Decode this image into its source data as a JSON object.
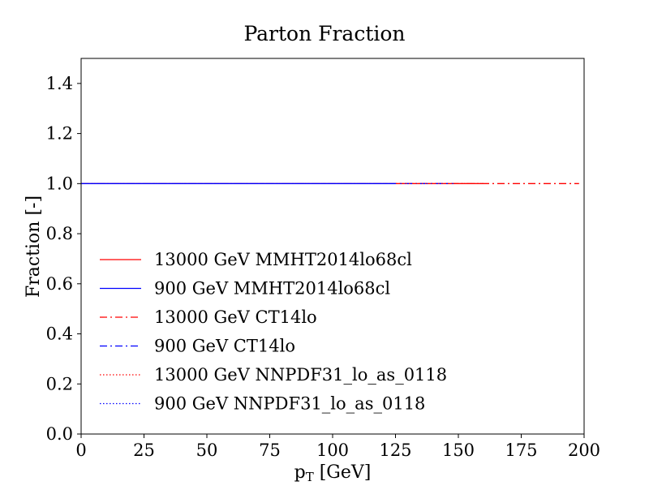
{
  "chart_data": {
    "type": "line",
    "title": "Parton Fraction",
    "xlabel": "p_T [GeV]",
    "ylabel": "Fraction [-]",
    "xlim": [
      0,
      200
    ],
    "ylim": [
      0.0,
      1.5
    ],
    "xticks": [
      "0",
      "25",
      "50",
      "75",
      "100",
      "125",
      "150",
      "175",
      "200"
    ],
    "yticks": [
      "0.0",
      "0.2",
      "0.4",
      "0.6",
      "0.8",
      "1.0",
      "1.2",
      "1.4"
    ],
    "grid": false,
    "legend_position": "lower-left",
    "series": [
      {
        "name": "13000 GeV MMHT2014lo68cl",
        "color": "#ff0000",
        "linestyle": "solid",
        "x": [
          0,
          160
        ],
        "y": [
          1.0,
          1.0
        ]
      },
      {
        "name": "900 GeV MMHT2014lo68cl",
        "color": "#0000ff",
        "linestyle": "solid",
        "x": [
          0,
          125
        ],
        "y": [
          1.0,
          1.0
        ]
      },
      {
        "name": "13000 GeV CT14lo",
        "color": "#ff0000",
        "linestyle": "dashdot",
        "x": [
          0,
          198
        ],
        "y": [
          1.0,
          1.0
        ]
      },
      {
        "name": "900 GeV CT14lo",
        "color": "#0000ff",
        "linestyle": "dashdot",
        "x": [
          0,
          148
        ],
        "y": [
          1.0,
          1.0
        ]
      },
      {
        "name": "13000 GeV NNPDF31_lo_as_0118",
        "color": "#ff0000",
        "linestyle": "dotted",
        "x": [
          0,
          160
        ],
        "y": [
          1.0,
          1.0
        ]
      },
      {
        "name": "900 GeV NNPDF31_lo_as_0118",
        "color": "#0000ff",
        "linestyle": "dotted",
        "x": [
          0,
          125
        ],
        "y": [
          1.0,
          1.0
        ]
      }
    ]
  }
}
